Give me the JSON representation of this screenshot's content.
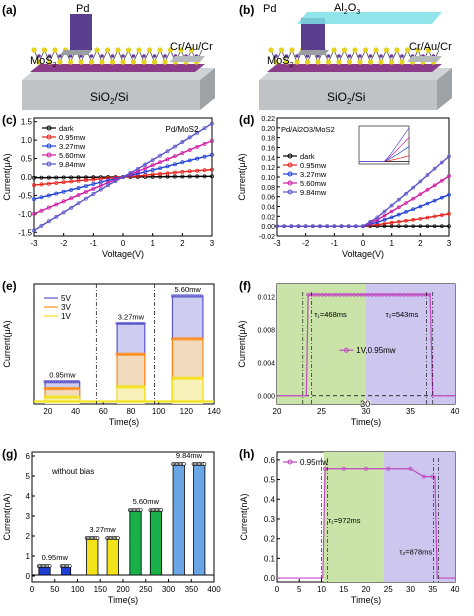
{
  "panels": {
    "a": {
      "label": "(a)",
      "texts": {
        "pd": "Pd",
        "mos2": "MoS",
        "mos2_sub": "2",
        "contact": "Cr/Au/Cr",
        "substrate": "SiO",
        "substrate_sub": "2",
        "substrate_tail": "/Si"
      }
    },
    "b": {
      "label": "(b)",
      "texts": {
        "pd": "Pd",
        "al2o3": "Al",
        "al2o3_sub1": "2",
        "al2o3_o": "O",
        "al2o3_sub2": "3",
        "mos2": "MoS",
        "mos2_sub": "2",
        "contact": "Cr/Au/Cr",
        "substrate": "SiO",
        "substrate_sub": "2",
        "substrate_tail": "/Si"
      }
    }
  },
  "chart_data": [
    {
      "id": "c",
      "label": "(c)",
      "type": "line",
      "annotation": "Pd/MoS2",
      "xlabel": "Voltage(V)",
      "ylabel": "Current(μA)",
      "xlim": [
        -3,
        3
      ],
      "ylim": [
        -1.6,
        1.6
      ],
      "xticks": [
        -3,
        -2,
        -1,
        0,
        1,
        2,
        3
      ],
      "yticks": [
        -1.5,
        -1.0,
        -0.5,
        0.0,
        0.5,
        1.0,
        1.5
      ],
      "legend": "top-left",
      "x": [
        -3,
        -2.5,
        -2,
        -1.5,
        -1,
        -0.5,
        0,
        0.5,
        1,
        1.5,
        2,
        2.5,
        3
      ],
      "series": [
        {
          "name": "dark",
          "color": "#000000",
          "values": [
            -0.02,
            -0.017,
            -0.013,
            -0.01,
            -0.007,
            -0.003,
            0,
            0.003,
            0.007,
            0.01,
            0.013,
            0.017,
            0.02
          ]
        },
        {
          "name": "0.95mw",
          "color": "#e8201a",
          "values": [
            -0.22,
            -0.18,
            -0.14,
            -0.1,
            -0.07,
            -0.03,
            0,
            0.03,
            0.07,
            0.1,
            0.14,
            0.17,
            0.2
          ]
        },
        {
          "name": "3.27mw",
          "color": "#1f3fd6",
          "values": [
            -0.6,
            -0.5,
            -0.4,
            -0.3,
            -0.19,
            -0.09,
            0,
            0.09,
            0.19,
            0.29,
            0.4,
            0.5,
            0.6
          ]
        },
        {
          "name": "5.60mw",
          "color": "#d21aa0",
          "values": [
            -1.0,
            -0.83,
            -0.66,
            -0.49,
            -0.32,
            -0.15,
            0,
            0.15,
            0.32,
            0.48,
            0.65,
            0.82,
            0.98
          ]
        },
        {
          "name": "9.84mw",
          "color": "#5a55c9",
          "values": [
            -1.45,
            -1.2,
            -0.96,
            -0.71,
            -0.46,
            -0.22,
            0,
            0.22,
            0.46,
            0.7,
            0.95,
            1.2,
            1.45
          ]
        }
      ]
    },
    {
      "id": "d",
      "label": "(d)",
      "type": "line",
      "annotation": "Pd/Al2O3/MoS2",
      "xlabel": "Voltage(V)",
      "ylabel": "Current(μA)",
      "xlim": [
        -3,
        3
      ],
      "ylim": [
        -0.02,
        0.22
      ],
      "xticks": [
        -3,
        -2,
        -1,
        0,
        1,
        2,
        3
      ],
      "yticks": [
        -0.02,
        0.0,
        0.02,
        0.04,
        0.06,
        0.08,
        0.1,
        0.12,
        0.14,
        0.16,
        0.18,
        0.2,
        0.22
      ],
      "legend": "left",
      "x": [
        -3,
        -2.5,
        -2,
        -1.5,
        -1,
        -0.5,
        0,
        0.5,
        1,
        1.5,
        2,
        2.5,
        3
      ],
      "series": [
        {
          "name": "dark",
          "color": "#000000",
          "values": [
            0,
            0,
            0,
            0,
            0,
            0,
            0,
            0,
            0,
            0,
            0,
            0,
            0
          ]
        },
        {
          "name": "0.95mw",
          "color": "#e8201a",
          "values": [
            0,
            0,
            0,
            0,
            0,
            0,
            0,
            0.003,
            0.007,
            0.011,
            0.015,
            0.02,
            0.025
          ]
        },
        {
          "name": "3.27mw",
          "color": "#1f3fd6",
          "values": [
            0,
            0,
            0,
            0,
            0,
            0,
            0,
            0.008,
            0.018,
            0.029,
            0.04,
            0.052,
            0.064
          ]
        },
        {
          "name": "5.60mw",
          "color": "#d21aa0",
          "values": [
            0,
            0,
            0,
            0,
            0,
            0,
            0,
            0.013,
            0.03,
            0.047,
            0.065,
            0.083,
            0.102
          ]
        },
        {
          "name": "9.84mw",
          "color": "#5a55c9",
          "values": [
            0,
            0,
            0,
            0,
            0,
            0,
            0,
            0.018,
            0.042,
            0.066,
            0.091,
            0.117,
            0.142
          ]
        }
      ]
    },
    {
      "id": "e",
      "label": "(e)",
      "type": "line",
      "xlabel": "Time(s)",
      "ylabel": "Current(μA)",
      "xlim": [
        10,
        140
      ],
      "ylim": [
        0,
        0.07
      ],
      "xticks": [
        20,
        40,
        60,
        80,
        100,
        120,
        140
      ],
      "legend": "top-left",
      "annotations": [
        "0.95mw",
        "3.27mw",
        "5.60mw"
      ],
      "segments": [
        [
          18,
          43
        ],
        [
          70,
          90
        ],
        [
          110,
          132
        ]
      ],
      "series": [
        {
          "name": "5V",
          "color": "#5a55c9",
          "levels": [
            0.013,
            0.047,
            0.063
          ]
        },
        {
          "name": "3V",
          "color": "#ff8c1a",
          "levels": [
            0.009,
            0.029,
            0.038
          ]
        },
        {
          "name": "1V",
          "color": "#f2e21a",
          "levels": [
            0.004,
            0.01,
            0.015
          ]
        }
      ]
    },
    {
      "id": "f",
      "label": "(f)",
      "type": "line",
      "xlabel": "Time(s)",
      "ylabel": "Current(μA)",
      "xlim": [
        20,
        40
      ],
      "ylim": [
        -0.001,
        0.0135
      ],
      "xticks": [
        20,
        25,
        30,
        35,
        40
      ],
      "yticks": [
        0.0,
        0.004,
        0.008,
        0.012
      ],
      "legend": "center",
      "rise_label": "τ₁=468ms",
      "decay_label": "τ₂=543ms",
      "series": [
        {
          "name": "1V,0.95mw",
          "color": "#c04ac0",
          "on": 23.5,
          "off": 37.2,
          "level": 0.0122
        }
      ]
    },
    {
      "id": "g",
      "label": "(g)",
      "type": "bar",
      "annotation": "without bias",
      "xlabel": "Time(s)",
      "ylabel": "Current(nA)",
      "xlim": [
        0,
        400
      ],
      "ylim": [
        -0.3,
        6.2
      ],
      "xticks": [
        0,
        50,
        100,
        150,
        200,
        250,
        300,
        350,
        400
      ],
      "yticks": [
        0,
        1,
        2,
        3,
        4,
        5,
        6
      ],
      "groups": [
        {
          "label": "0.95mw",
          "color": "#1f3fd6",
          "pulses": [
            [
              15,
              40
            ],
            [
              65,
              85
            ]
          ],
          "level": 0.5
        },
        {
          "label": "3.27mw",
          "color": "#f2e21a",
          "pulses": [
            [
              120,
              145
            ],
            [
              165,
              190
            ]
          ],
          "level": 1.9
        },
        {
          "label": "5.60mw",
          "color": "#19b04a",
          "pulses": [
            [
              215,
              240
            ],
            [
              260,
              285
            ]
          ],
          "level": 3.3
        },
        {
          "label": "9.84mw",
          "color": "#6aa6e6",
          "pulses": [
            [
              310,
              335
            ],
            [
              355,
              380
            ]
          ],
          "level": 5.6
        }
      ]
    },
    {
      "id": "h",
      "label": "(h)",
      "type": "line",
      "xlabel": "Time(s)",
      "ylabel": "Current(nA)",
      "xlim": [
        0,
        40
      ],
      "ylim": [
        -0.02,
        0.64
      ],
      "xticks": [
        0,
        5,
        10,
        15,
        20,
        25,
        30,
        35,
        40
      ],
      "yticks": [
        0.0,
        0.1,
        0.2,
        0.3,
        0.4,
        0.5,
        0.6
      ],
      "legend": "top-left",
      "rise_label": "τ₁=972ms",
      "decay_label": "τ₂=878ms",
      "series": [
        {
          "name": "0.95mw",
          "color": "#c04ac0",
          "on": 10.5,
          "off": 36,
          "level": 0.555
        }
      ]
    }
  ]
}
